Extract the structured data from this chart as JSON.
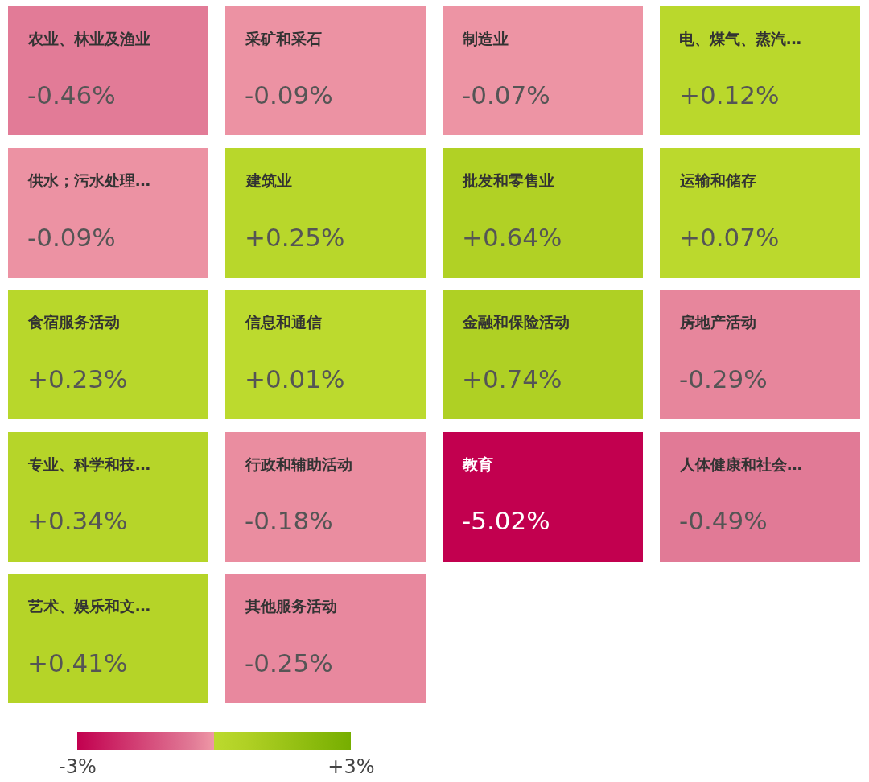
{
  "chart_data": {
    "type": "heatmap",
    "categories": [
      null,
      null,
      null,
      null
    ],
    "y_categories": [
      null,
      null,
      null,
      null,
      null
    ],
    "cells": [
      [
        -0.46,
        -0.09,
        -0.07,
        0.12
      ],
      [
        -0.09,
        0.25,
        0.64,
        0.07
      ],
      [
        0.23,
        0.01,
        0.74,
        -0.29
      ],
      [
        0.34,
        -0.18,
        -5.02,
        -0.49
      ],
      [
        0.41,
        -0.25,
        null,
        null
      ]
    ],
    "cell_labels": [
      [
        "农业、林业及渔业\n-0.46%",
        "采矿和采石\n-0.09%",
        "制造业\n-0.07%",
        "电、煤气、蒸汽…\n+0.12%"
      ],
      [
        "供水；污水处理…\n-0.09%",
        "建筑业\n+0.25%",
        "批发和零售业\n+0.64%",
        "运输和储存\n+0.07%"
      ],
      [
        "食宿服务活动\n+0.23%",
        "信息和通信\n+0.01%",
        "金融和保险活动\n+0.74%",
        "房地产活动\n-0.29%"
      ],
      [
        "专业、科学和技…\n+0.34%",
        "行政和辅助活动\n-0.18%",
        "教育\n-5.02%",
        "人体健康和社会…\n-0.49%"
      ],
      [
        "艺术、娱乐和文…\n+0.41%",
        "其他服务活动\n-0.25%",
        null,
        null
      ]
    ],
    "clim": [
      -3,
      3
    ],
    "cticks": [
      {
        "value": -3,
        "label": "-3%"
      },
      {
        "value": 3,
        "label": "+3%"
      }
    ]
  }
}
